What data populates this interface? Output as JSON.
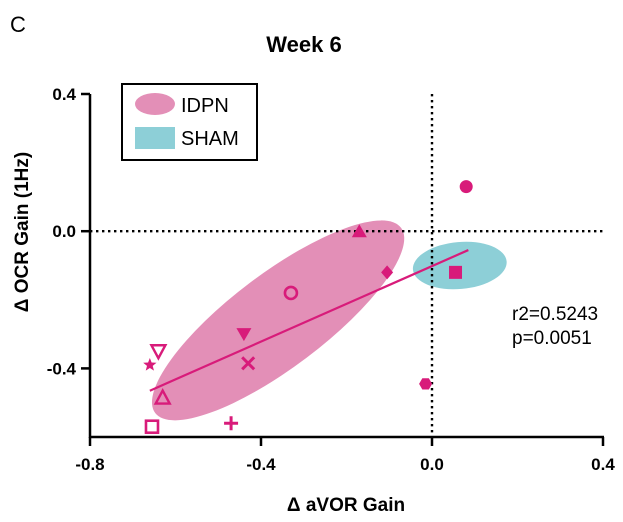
{
  "chart_data": {
    "type": "scatter",
    "panel_label": "C",
    "title": "Week 6",
    "xlabel": "Δ aVOR Gain",
    "ylabel": "Δ OCR Gain (1Hz)",
    "xlim": [
      -0.8,
      0.4
    ],
    "ylim": [
      -0.6,
      0.4
    ],
    "x_ticks": [
      -0.8,
      -0.4,
      0.0,
      0.4
    ],
    "x_tick_labels": [
      "-0.8",
      "-0.4",
      "0.0",
      "0.4"
    ],
    "y_ticks": [
      -0.4,
      0.0,
      0.4
    ],
    "y_tick_labels": [
      "-0.4",
      "0.0",
      "0.4"
    ],
    "reference_lines": {
      "x": 0.0,
      "y": 0.0,
      "style": "dotted"
    },
    "legend": {
      "position": "top-left",
      "entries": [
        {
          "label": "IDPN",
          "color": "#e38fb7"
        },
        {
          "label": "SHAM",
          "color": "#8dcfd7"
        }
      ]
    },
    "ellipses": [
      {
        "group": "IDPN",
        "cx": -0.36,
        "cy": -0.26,
        "rx": 0.36,
        "ry": 0.11,
        "angle_deg": -37,
        "color": "#e38fb7"
      },
      {
        "group": "SHAM",
        "cx": 0.065,
        "cy": -0.1,
        "rx": 0.11,
        "ry": 0.055,
        "angle_deg": -5,
        "color": "#8dcfd7"
      }
    ],
    "points_color": "#d81b7a",
    "points": [
      {
        "x": 0.08,
        "y": 0.13,
        "marker": "circle-filled"
      },
      {
        "x": -0.17,
        "y": 0.0,
        "marker": "triangle-filled"
      },
      {
        "x": -0.105,
        "y": -0.12,
        "marker": "diamond-filled"
      },
      {
        "x": 0.055,
        "y": -0.12,
        "marker": "square-filled"
      },
      {
        "x": -0.33,
        "y": -0.18,
        "marker": "circle-open"
      },
      {
        "x": -0.44,
        "y": -0.3,
        "marker": "triangle-down-filled"
      },
      {
        "x": -0.43,
        "y": -0.385,
        "marker": "x"
      },
      {
        "x": -0.64,
        "y": -0.35,
        "marker": "triangle-down-open"
      },
      {
        "x": -0.66,
        "y": -0.39,
        "marker": "star"
      },
      {
        "x": -0.63,
        "y": -0.485,
        "marker": "triangle-open"
      },
      {
        "x": -0.015,
        "y": -0.445,
        "marker": "hexagon-filled"
      },
      {
        "x": -0.47,
        "y": -0.56,
        "marker": "plus"
      },
      {
        "x": -0.655,
        "y": -0.57,
        "marker": "square-open"
      }
    ],
    "regression": {
      "x": [
        -0.66,
        0.085
      ],
      "y": [
        -0.465,
        -0.055
      ],
      "color": "#d81b7a"
    },
    "annotations": [
      "r2=0.5243",
      "p=0.0051"
    ]
  }
}
